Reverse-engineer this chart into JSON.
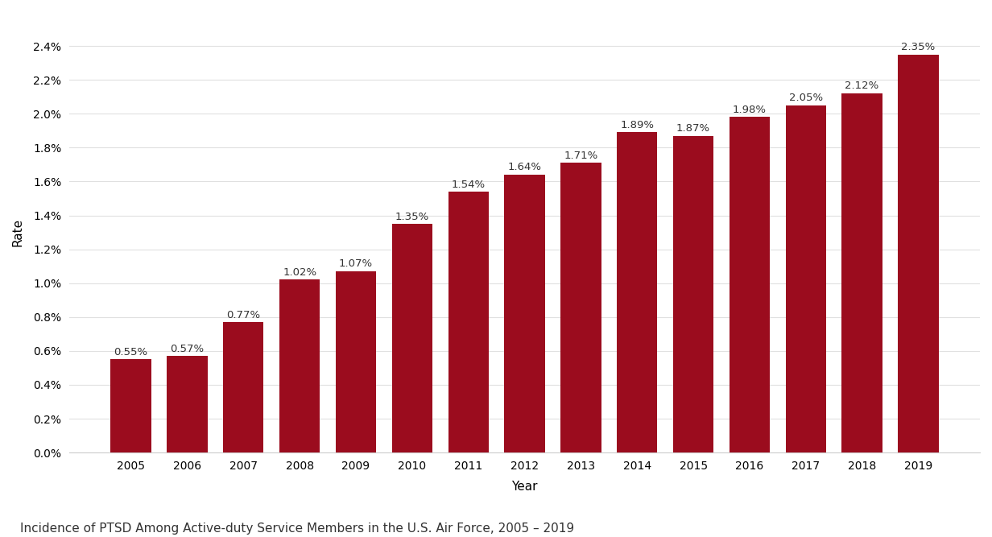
{
  "years": [
    "2005",
    "2006",
    "2007",
    "2008",
    "2009",
    "2010",
    "2011",
    "2012",
    "2013",
    "2014",
    "2015",
    "2016",
    "2017",
    "2018",
    "2019"
  ],
  "values": [
    0.0055,
    0.0057,
    0.0077,
    0.0102,
    0.0107,
    0.0135,
    0.0154,
    0.0164,
    0.0171,
    0.0189,
    0.0187,
    0.0198,
    0.0205,
    0.0212,
    0.0235
  ],
  "labels": [
    "0.55%",
    "0.57%",
    "0.77%",
    "1.02%",
    "1.07%",
    "1.35%",
    "1.54%",
    "1.64%",
    "1.71%",
    "1.89%",
    "1.87%",
    "1.98%",
    "2.05%",
    "2.12%",
    "2.35%"
  ],
  "bar_color": "#9b0c1e",
  "title": "Incidence of PTSD Among Active-duty Service Members in the U.S. Air Force, 2005 – 2019",
  "xlabel": "Year",
  "ylabel": "Rate",
  "background_color": "#ffffff",
  "grid_color": "#e0e0e0",
  "ylim_max": 0.026,
  "yticks": [
    0.0,
    0.002,
    0.004,
    0.006,
    0.008,
    0.01,
    0.012,
    0.014,
    0.016,
    0.018,
    0.02,
    0.022,
    0.024
  ],
  "label_fontsize": 9.5,
  "title_fontsize": 11,
  "axis_label_fontsize": 11,
  "tick_fontsize": 10
}
